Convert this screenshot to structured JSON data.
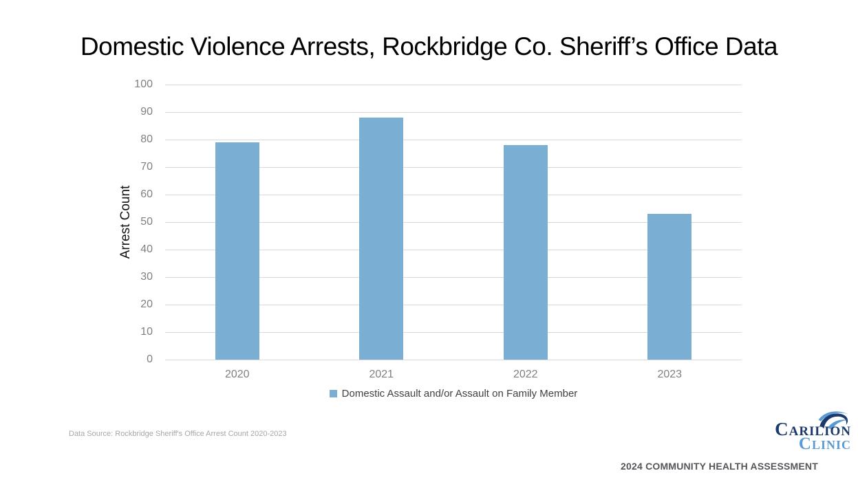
{
  "slide": {
    "data_source": "Data Source: Rockbridge Sheriff's Office Arrest Count 2020-2023",
    "footer": "2024 COMMUNITY HEALTH ASSESSMENT",
    "logo": {
      "line1": "Carilion",
      "line2": "Clinic"
    }
  },
  "chart_data": {
    "type": "bar",
    "title": "Domestic Violence Arrests, Rockbridge Co. Sheriff’s Office Data",
    "categories": [
      "2020",
      "2021",
      "2022",
      "2023"
    ],
    "series": [
      {
        "name": "Domestic Assault and/or Assault on Family Member",
        "values": [
          79,
          88,
          78,
          53
        ]
      }
    ],
    "xlabel": "",
    "ylabel": "Arrest Count",
    "ylim": [
      0,
      100
    ],
    "ytick_step": 10,
    "grid": true,
    "legend_position": "bottom"
  },
  "colors": {
    "bar": "#7aaed3",
    "gridline": "#d9d9d9",
    "tick_label": "#7f7f7f",
    "legend_text": "#404040",
    "source_text": "#a6a6a6",
    "footer_text": "#54565a",
    "logo_navy": "#1b3a6b",
    "logo_blue": "#5b9bd5"
  }
}
